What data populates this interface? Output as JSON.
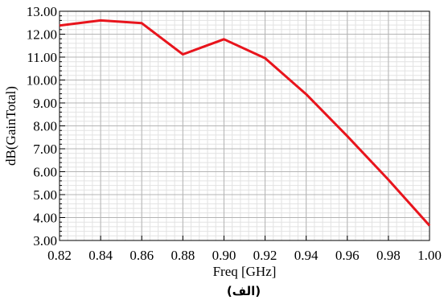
{
  "chart_data": {
    "type": "line",
    "xlabel": "Freq [GHz]",
    "ylabel": "dB(GainTotal)",
    "caption": "(الف)",
    "xlim": [
      0.82,
      1.0
    ],
    "ylim": [
      3.0,
      13.0
    ],
    "x_ticks": [
      "0.82",
      "0.84",
      "0.86",
      "0.88",
      "0.90",
      "0.92",
      "0.94",
      "0.96",
      "0.98",
      "1.00"
    ],
    "y_ticks": [
      "3.00",
      "4.00",
      "5.00",
      "6.00",
      "7.00",
      "8.00",
      "9.00",
      "10.00",
      "11.00",
      "12.00",
      "13.00"
    ],
    "grid": true,
    "series": [
      {
        "color": "#e8141c",
        "x": [
          0.82,
          0.84,
          0.86,
          0.88,
          0.9,
          0.92,
          0.94,
          0.96,
          0.98,
          1.0
        ],
        "y": [
          12.38,
          12.6,
          12.48,
          11.12,
          11.78,
          10.95,
          9.38,
          7.55,
          5.65,
          3.65
        ]
      }
    ]
  }
}
